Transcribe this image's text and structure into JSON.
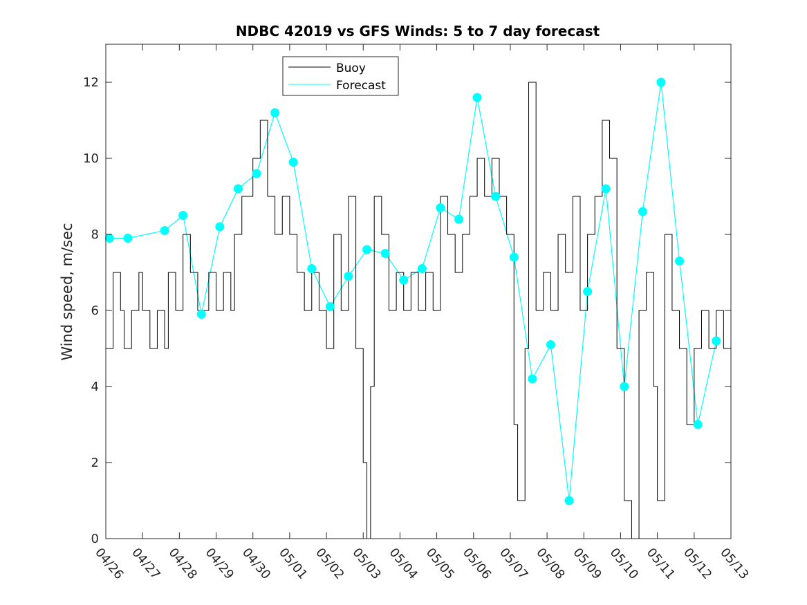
{
  "chart_data": {
    "type": "line",
    "title": "NDBC 42019 vs GFS Winds: 5 to 7 day forecast",
    "xlabel": "",
    "ylabel": "Wind speed, m/sec",
    "xlim": [
      0,
      17
    ],
    "ylim": [
      0,
      13
    ],
    "x_tick_labels": [
      "04/26",
      "04/27",
      "04/28",
      "04/29",
      "04/30",
      "05/01",
      "05/02",
      "05/03",
      "05/04",
      "05/05",
      "05/06",
      "05/07",
      "05/08",
      "05/09",
      "05/10",
      "05/11",
      "05/12",
      "05/13"
    ],
    "y_ticks": [
      0,
      2,
      4,
      6,
      8,
      10,
      12
    ],
    "grid": false,
    "legend_position": "top",
    "x_units": "days since 04/26",
    "series": [
      {
        "name": "Buoy",
        "color": "#000000",
        "x": [
          0.0,
          0.2,
          0.4,
          0.5,
          0.7,
          0.9,
          1.0,
          1.2,
          1.4,
          1.6,
          1.7,
          1.9,
          2.1,
          2.3,
          2.5,
          2.8,
          3.0,
          3.2,
          3.4,
          3.5,
          3.7,
          4.0,
          4.2,
          4.4,
          4.6,
          4.8,
          5.0,
          5.2,
          5.4,
          5.6,
          5.8,
          6.0,
          6.2,
          6.4,
          6.6,
          6.8,
          7.0,
          7.1,
          7.2,
          7.3,
          7.5,
          7.7,
          7.9,
          8.1,
          8.3,
          8.5,
          8.7,
          8.9,
          9.1,
          9.3,
          9.5,
          9.7,
          9.9,
          10.1,
          10.3,
          10.5,
          10.7,
          10.9,
          11.1,
          11.2,
          11.4,
          11.5,
          11.7,
          11.9,
          12.1,
          12.3,
          12.5,
          12.7,
          12.9,
          13.1,
          13.3,
          13.5,
          13.7,
          13.9,
          14.1,
          14.3,
          14.5,
          14.7,
          14.9,
          15.0,
          15.2,
          15.4,
          15.6,
          15.8,
          16.0,
          16.2,
          16.4,
          16.6,
          16.8,
          17.0
        ],
        "values": [
          5,
          7,
          6,
          5,
          6,
          7,
          6,
          5,
          6,
          5,
          7,
          6,
          8,
          7,
          6,
          7,
          6,
          7,
          6,
          8,
          9,
          10,
          11,
          9,
          8,
          9,
          8,
          7,
          6,
          7,
          6,
          5,
          8,
          6,
          9,
          5,
          2,
          0,
          4,
          9,
          8,
          6,
          7,
          6,
          7,
          6,
          7,
          6,
          9,
          8,
          7,
          8,
          9,
          10,
          9,
          10,
          9,
          8,
          3,
          1,
          5,
          12,
          6,
          7,
          6,
          8,
          7,
          9,
          6,
          8,
          9,
          11,
          10,
          5,
          1,
          0,
          6,
          7,
          4,
          1,
          8,
          6,
          5,
          3,
          5,
          6,
          5,
          6,
          5,
          4
        ]
      },
      {
        "name": "Forecast",
        "color": "#00ffff",
        "x": [
          0.1,
          0.6,
          1.6,
          2.1,
          2.6,
          3.1,
          3.6,
          4.1,
          4.6,
          5.1,
          5.6,
          6.1,
          6.6,
          7.1,
          7.6,
          8.1,
          8.6,
          9.1,
          9.6,
          10.1,
          10.6,
          11.1,
          11.6,
          12.1,
          12.6,
          13.1,
          13.6,
          14.1,
          14.6,
          15.1,
          15.6,
          16.1,
          16.6
        ],
        "values": [
          7.9,
          7.9,
          8.1,
          8.5,
          5.9,
          8.2,
          9.2,
          9.6,
          11.2,
          9.9,
          7.1,
          6.1,
          6.9,
          7.6,
          7.5,
          6.8,
          7.1,
          8.7,
          8.4,
          11.6,
          9.0,
          7.4,
          4.2,
          5.1,
          1.0,
          6.5,
          9.2,
          4.0,
          8.6,
          12.0,
          7.3,
          3.0,
          5.2
        ]
      }
    ]
  }
}
